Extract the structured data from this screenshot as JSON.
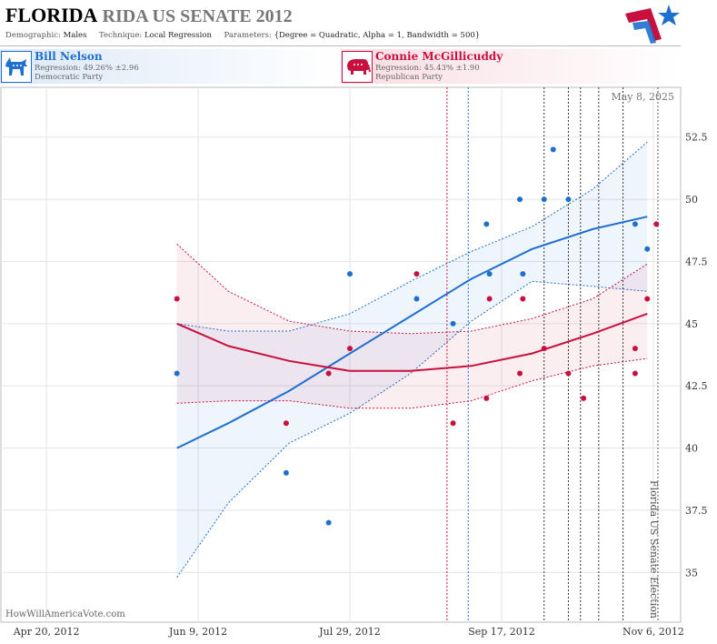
{
  "header": {
    "title_state": "FLORIDA",
    "title_rest": "RIDA US SENATE 2012",
    "demographic_label": "Demographic:",
    "demographic_value": "Males",
    "technique_label": "Technique:",
    "technique_value": "Local Regression",
    "parameters_label": "Parameters:",
    "parameters_value": "{Degree = Quadratic, Alpha = 1, Bandwidth = 500}"
  },
  "candidates": [
    {
      "name": "Bill Nelson",
      "regression": "Regression: 49.26% ±2.96",
      "party": "Democratic Party",
      "color": "#1e6fd0",
      "icon": "donkey-icon"
    },
    {
      "name": "Connie McGillicuddy",
      "regression": "Regression: 45.43% ±1.90",
      "party": "Republican Party",
      "color": "#c8103e",
      "icon": "elephant-icon"
    }
  ],
  "chart": {
    "date_stamp": "May 8, 2025",
    "watermark": "HowWillAmericaVote.com",
    "election_label": "Florida US Senate Election"
  },
  "chart_data": {
    "type": "scatter",
    "x_ticks": [
      "Apr 20, 2012",
      "Jun 9, 2012",
      "Jul 29, 2012",
      "Sep 17, 2012",
      "Nov 6, 2012"
    ],
    "x_tick_days": [
      0,
      50,
      100,
      150,
      200
    ],
    "y_ticks": [
      "35",
      "37.5",
      "40",
      "42.5",
      "45",
      "47.5",
      "50",
      "52.5"
    ],
    "xlim": [
      -15,
      209
    ],
    "ylim": [
      33,
      54.5
    ],
    "grid": true,
    "election_day": 201.5,
    "series": [
      {
        "name": "Bill Nelson",
        "color": "#1e6fd0",
        "points": [
          [
            43,
            43
          ],
          [
            79,
            39
          ],
          [
            93,
            37
          ],
          [
            100,
            47
          ],
          [
            122,
            46
          ],
          [
            134,
            45
          ],
          [
            145,
            49
          ],
          [
            146,
            47
          ],
          [
            156,
            50
          ],
          [
            157,
            47
          ],
          [
            164,
            50
          ],
          [
            167,
            52
          ],
          [
            172,
            50
          ],
          [
            194,
            49
          ],
          [
            198,
            48
          ]
        ],
        "fit": [
          [
            43,
            40
          ],
          [
            60,
            41
          ],
          [
            80,
            42.3
          ],
          [
            100,
            43.8
          ],
          [
            120,
            45.3
          ],
          [
            140,
            46.8
          ],
          [
            160,
            48
          ],
          [
            180,
            48.8
          ],
          [
            198,
            49.3
          ]
        ],
        "upper": [
          [
            43,
            45
          ],
          [
            60,
            44.7
          ],
          [
            80,
            44.7
          ],
          [
            100,
            45.4
          ],
          [
            120,
            46.7
          ],
          [
            140,
            47.9
          ],
          [
            160,
            48.9
          ],
          [
            180,
            50.4
          ],
          [
            198,
            52.3
          ]
        ],
        "lower": [
          [
            43,
            34.8
          ],
          [
            60,
            37.8
          ],
          [
            80,
            40.2
          ],
          [
            100,
            41.4
          ],
          [
            120,
            43
          ],
          [
            140,
            45.1
          ],
          [
            160,
            46.7
          ],
          [
            180,
            46.5
          ],
          [
            198,
            46.3
          ]
        ],
        "vlines": [
          139
        ]
      },
      {
        "name": "Connie McGillicuddy",
        "color": "#c8103e",
        "points": [
          [
            43,
            46
          ],
          [
            79,
            41
          ],
          [
            93,
            43
          ],
          [
            100,
            44
          ],
          [
            122,
            47
          ],
          [
            134,
            41
          ],
          [
            145,
            42
          ],
          [
            146,
            46
          ],
          [
            156,
            43
          ],
          [
            157,
            46
          ],
          [
            164,
            44
          ],
          [
            172,
            43
          ],
          [
            177,
            42
          ],
          [
            194,
            44
          ],
          [
            194,
            43
          ],
          [
            198,
            46
          ],
          [
            201,
            49
          ]
        ],
        "fit": [
          [
            43,
            45
          ],
          [
            60,
            44.1
          ],
          [
            80,
            43.5
          ],
          [
            100,
            43.1
          ],
          [
            120,
            43.1
          ],
          [
            140,
            43.3
          ],
          [
            160,
            43.8
          ],
          [
            180,
            44.6
          ],
          [
            198,
            45.4
          ]
        ],
        "upper": [
          [
            43,
            48.2
          ],
          [
            60,
            46.3
          ],
          [
            80,
            45.1
          ],
          [
            100,
            44.7
          ],
          [
            120,
            44.6
          ],
          [
            140,
            44.7
          ],
          [
            160,
            45.2
          ],
          [
            180,
            46
          ],
          [
            198,
            47.4
          ]
        ],
        "lower": [
          [
            43,
            41.8
          ],
          [
            60,
            41.9
          ],
          [
            80,
            41.9
          ],
          [
            100,
            41.6
          ],
          [
            120,
            41.6
          ],
          [
            140,
            41.9
          ],
          [
            160,
            42.7
          ],
          [
            180,
            43.3
          ],
          [
            198,
            43.6
          ]
        ],
        "vlines": [
          132
        ]
      }
    ],
    "poll_lines": [
      164,
      172,
      176,
      182,
      190
    ]
  }
}
